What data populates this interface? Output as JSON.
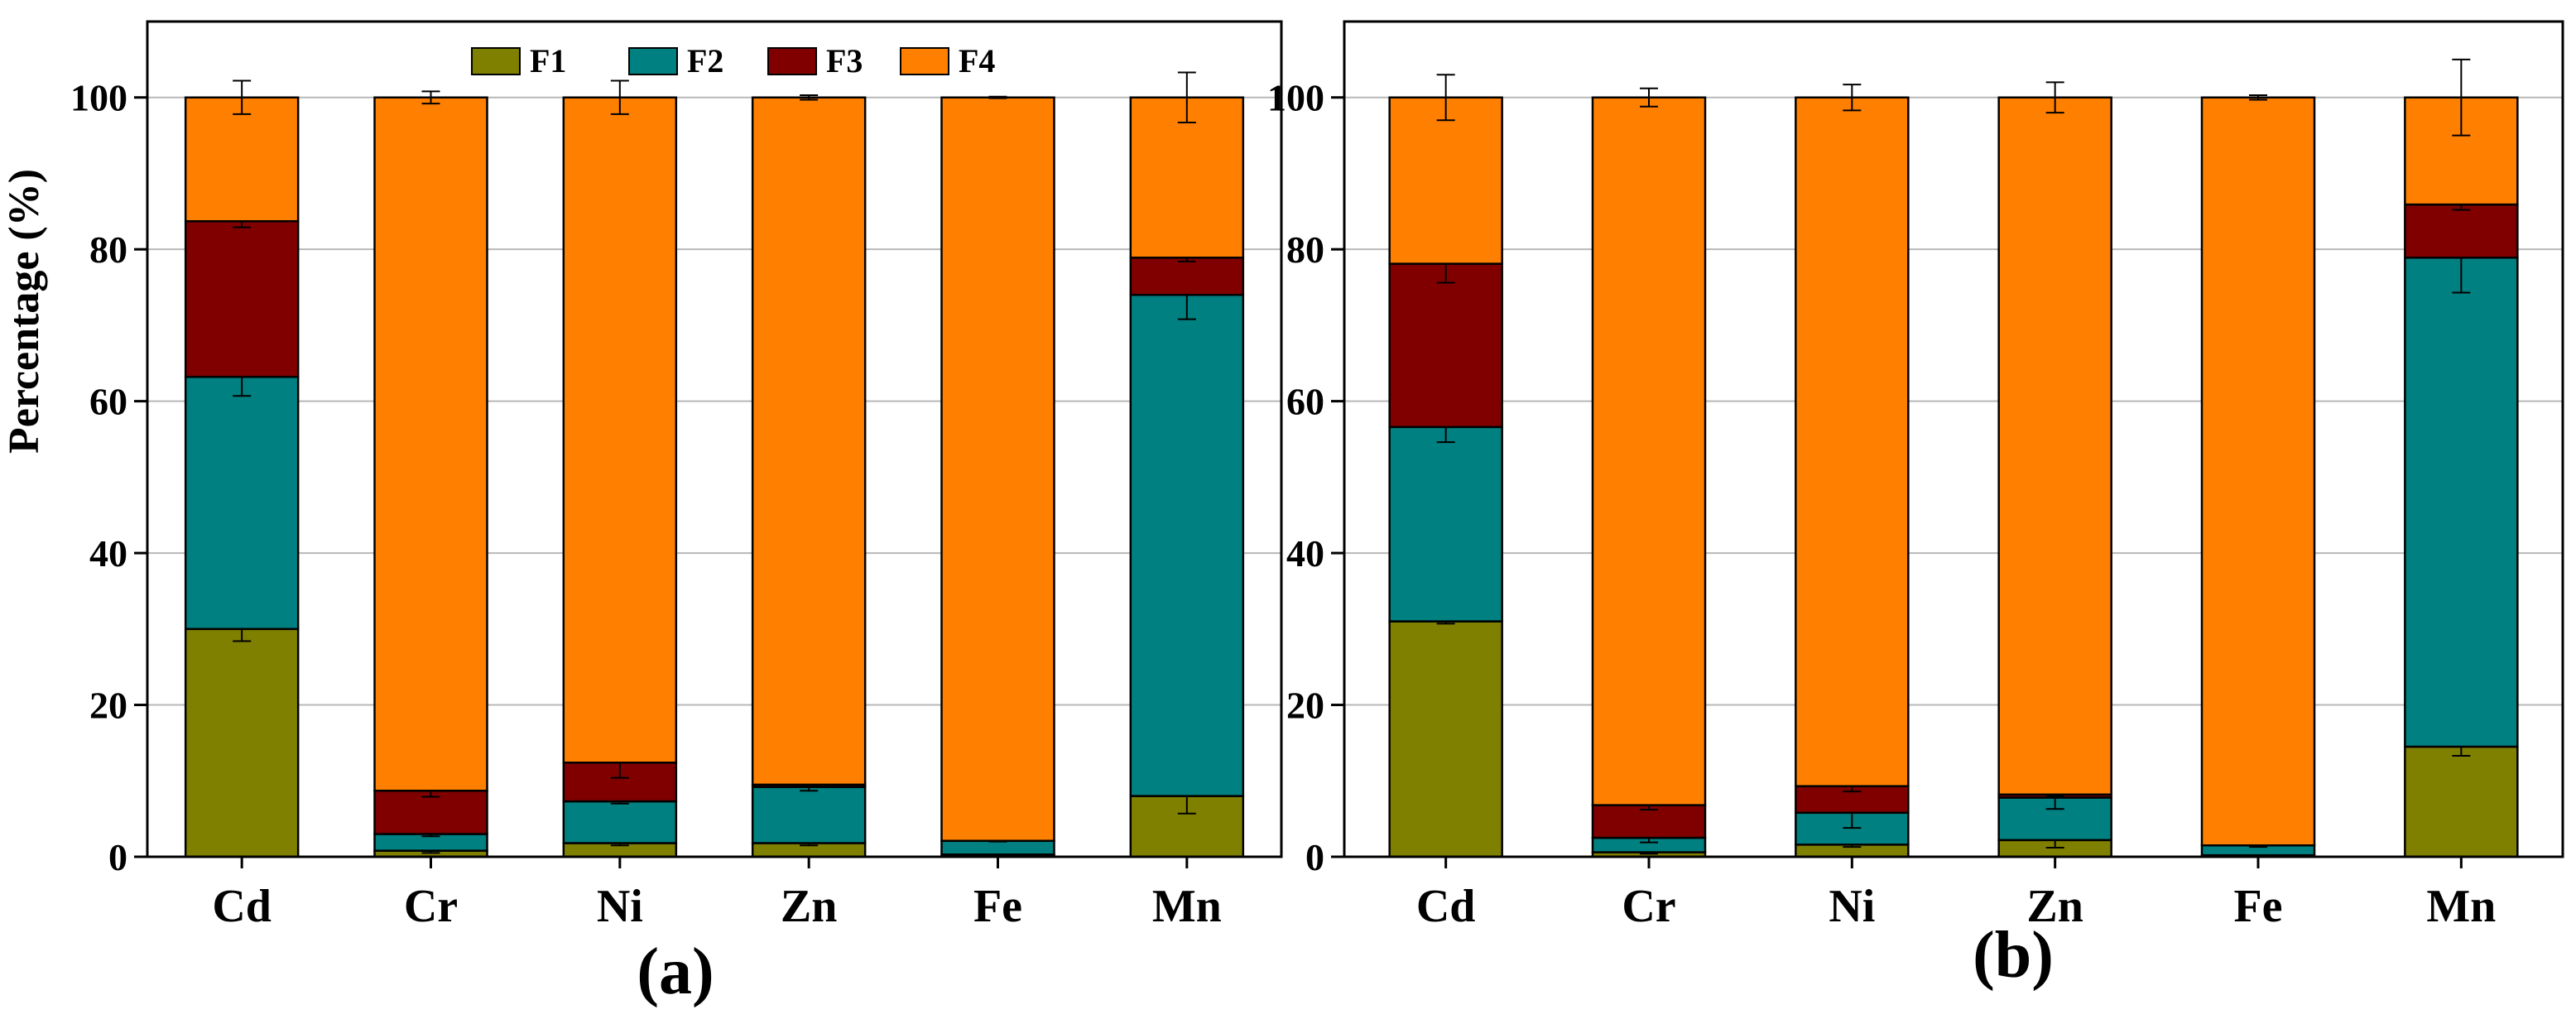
{
  "colors": {
    "F1": "#808000",
    "F2": "#008080",
    "F3": "#800000",
    "F4": "#FF8000"
  },
  "legend": [
    "F1",
    "F2",
    "F3",
    "F4"
  ],
  "chart_data": [
    {
      "type": "bar",
      "stacked": true,
      "panel_label": "(a)",
      "title": "",
      "xlabel": "",
      "ylabel": "Percentage (%)",
      "ylim": [
        0,
        110
      ],
      "yticks": [
        0,
        20,
        40,
        60,
        80,
        100
      ],
      "grid": true,
      "legend_position": "top-center",
      "categories": [
        "Cd",
        "Cr",
        "Ni",
        "Zn",
        "Fe",
        "Mn"
      ],
      "series": [
        {
          "name": "F1",
          "values": [
            30.0,
            0.8,
            1.8,
            1.8,
            0.3,
            8.0
          ],
          "errors": [
            1.6,
            0.3,
            0.3,
            0.3,
            0.1,
            2.3
          ]
        },
        {
          "name": "F2",
          "values": [
            33.2,
            2.2,
            5.5,
            7.4,
            1.8,
            66.0
          ],
          "errors": [
            2.5,
            0.3,
            0.3,
            0.5,
            0.1,
            3.2
          ]
        },
        {
          "name": "F3",
          "values": [
            20.5,
            5.7,
            5.1,
            0.3,
            0.0,
            4.9
          ],
          "errors": [
            0.8,
            0.8,
            2.0,
            0.2,
            0.0,
            0.5
          ]
        },
        {
          "name": "F4",
          "values": [
            16.3,
            91.3,
            87.6,
            90.5,
            97.9,
            21.1
          ],
          "errors": [
            2.2,
            0.8,
            2.2,
            0.3,
            0.1,
            3.3
          ]
        }
      ]
    },
    {
      "type": "bar",
      "stacked": true,
      "panel_label": "(b)",
      "title": "",
      "xlabel": "",
      "ylabel": "",
      "ylim": [
        0,
        110
      ],
      "yticks": [
        0,
        20,
        40,
        60,
        80,
        100
      ],
      "grid": true,
      "categories": [
        "Cd",
        "Cr",
        "Ni",
        "Zn",
        "Fe",
        "Mn"
      ],
      "series": [
        {
          "name": "F1",
          "values": [
            31.0,
            0.6,
            1.6,
            2.2,
            0.2,
            14.5
          ],
          "errors": [
            0.3,
            0.2,
            0.3,
            1.0,
            0.1,
            1.2
          ]
        },
        {
          "name": "F2",
          "values": [
            25.6,
            1.9,
            4.2,
            5.6,
            1.3,
            64.4
          ],
          "errors": [
            2.0,
            0.6,
            2.0,
            1.5,
            0.2,
            4.6
          ]
        },
        {
          "name": "F3",
          "values": [
            21.5,
            4.3,
            3.5,
            0.4,
            0.0,
            7.0
          ],
          "errors": [
            2.5,
            0.6,
            0.7,
            0.2,
            0.0,
            0.7
          ]
        },
        {
          "name": "F4",
          "values": [
            21.9,
            93.2,
            90.7,
            91.8,
            98.5,
            14.1
          ],
          "errors": [
            3.0,
            1.2,
            1.7,
            2.0,
            0.3,
            5.0
          ]
        }
      ]
    }
  ]
}
